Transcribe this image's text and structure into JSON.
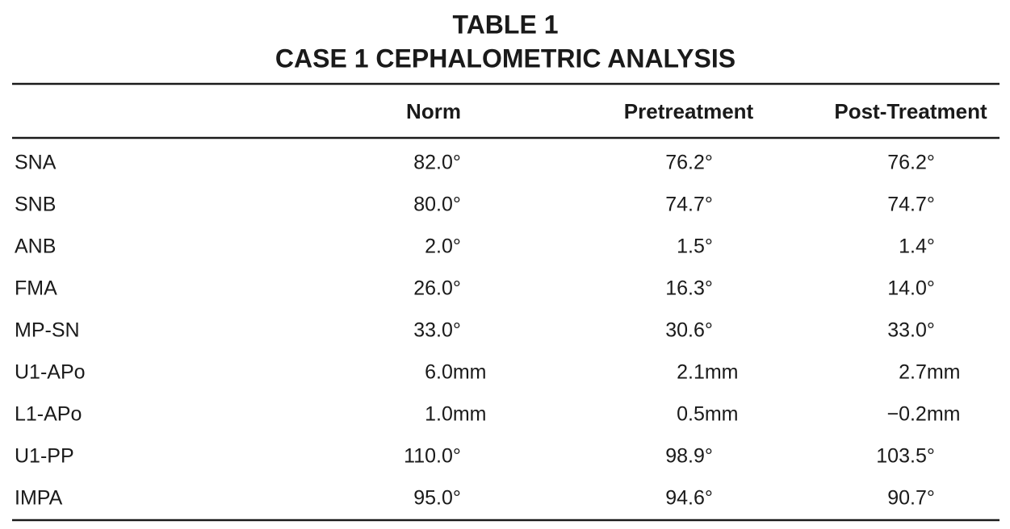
{
  "title": {
    "line1": "TABLE 1",
    "line2": "CASE 1 CEPHALOMETRIC ANALYSIS"
  },
  "table": {
    "header": [
      "Norm",
      "Pretreatment",
      "Post-Treatment"
    ],
    "rows": [
      [
        "SNA",
        "82.0°",
        "76.2°",
        "76.2°"
      ],
      [
        "SNB",
        "80.0°",
        "74.7°",
        "74.7°"
      ],
      [
        "ANB",
        "2.0°",
        "1.5°",
        "1.4°"
      ],
      [
        "FMA",
        "26.0°",
        "16.3°",
        "14.0°"
      ],
      [
        "MP-SN",
        "33.0°",
        "30.6°",
        "33.0°"
      ],
      [
        "U1-APo",
        "6.0mm",
        "2.1mm",
        "2.7mm"
      ],
      [
        "L1-APo",
        "1.0mm",
        "0.5mm",
        "−0.2mm"
      ],
      [
        "U1-PP",
        "110.0°",
        "98.9°",
        "103.5°"
      ],
      [
        "IMPA",
        "95.0°",
        "94.6°",
        "90.7°"
      ]
    ]
  }
}
